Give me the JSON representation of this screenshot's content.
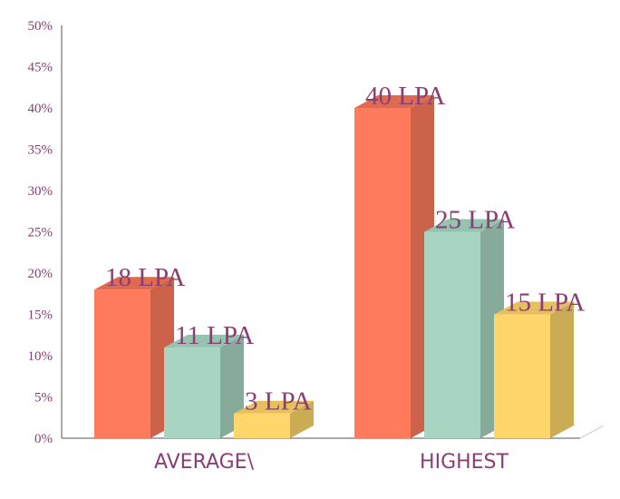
{
  "chart_data": {
    "type": "bar",
    "style": "3d-clustered",
    "categories": [
      "AVERAGE\\",
      "HIGHEST"
    ],
    "series": [
      {
        "values": [
          18,
          40
        ],
        "labels": [
          "18 LPA",
          "40 LPA"
        ],
        "color": "#ff7b5c",
        "side_color": "#cc6249",
        "top_color": "#e06a4f"
      },
      {
        "values": [
          11,
          25
        ],
        "labels": [
          "11 LPA",
          "25 LPA"
        ],
        "color": "#a8d5c2",
        "side_color": "#86ab9b",
        "top_color": "#96c2b0"
      },
      {
        "values": [
          3,
          15
        ],
        "labels": [
          "3 LPA",
          "15 LPA"
        ],
        "color": "#ffd66b",
        "side_color": "#ccab55",
        "top_color": "#e6c05f"
      }
    ],
    "y_ticks": [
      "0%",
      "5%",
      "10%",
      "15%",
      "20%",
      "25%",
      "30%",
      "35%",
      "40%",
      "45%",
      "50%"
    ],
    "ylim": [
      0,
      50
    ],
    "y_step": 5,
    "grid": false,
    "legend": "none",
    "label_color": "#8a3f74",
    "axis_color": "#333333"
  }
}
